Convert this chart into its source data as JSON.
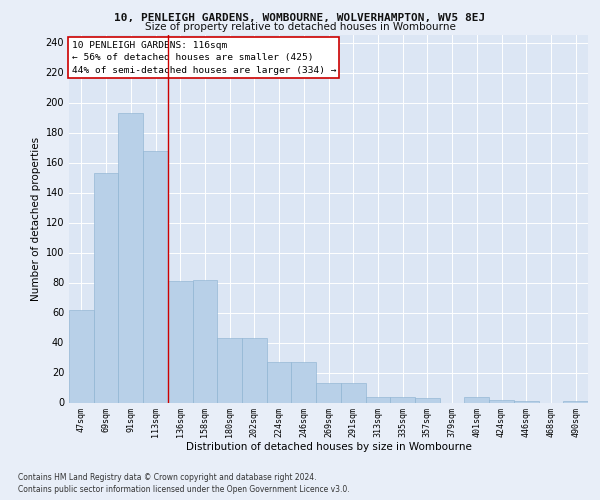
{
  "title1": "10, PENLEIGH GARDENS, WOMBOURNE, WOLVERHAMPTON, WV5 8EJ",
  "title2": "Size of property relative to detached houses in Wombourne",
  "xlabel": "Distribution of detached houses by size in Wombourne",
  "ylabel": "Number of detached properties",
  "footer1": "Contains HM Land Registry data © Crown copyright and database right 2024.",
  "footer2": "Contains public sector information licensed under the Open Government Licence v3.0.",
  "annotation_line1": "10 PENLEIGH GARDENS: 116sqm",
  "annotation_line2": "← 56% of detached houses are smaller (425)",
  "annotation_line3": "44% of semi-detached houses are larger (334) →",
  "bar_labels": [
    "47sqm",
    "69sqm",
    "91sqm",
    "113sqm",
    "136sqm",
    "158sqm",
    "180sqm",
    "202sqm",
    "224sqm",
    "246sqm",
    "269sqm",
    "291sqm",
    "313sqm",
    "335sqm",
    "357sqm",
    "379sqm",
    "401sqm",
    "424sqm",
    "446sqm",
    "468sqm",
    "490sqm"
  ],
  "bar_values": [
    62,
    153,
    193,
    168,
    81,
    82,
    43,
    43,
    27,
    27,
    13,
    13,
    4,
    4,
    3,
    0,
    4,
    2,
    1,
    0,
    1
  ],
  "bar_color": "#b8d0e8",
  "bar_edge_color": "#8ab0d0",
  "vline_x": 3.5,
  "vline_color": "#cc0000",
  "bg_color": "#e8eef8",
  "plot_bg_color": "#dce6f4",
  "grid_color": "#ffffff",
  "annotation_box_facecolor": "#ffffff",
  "annotation_box_edge": "#cc0000",
  "ylim": [
    0,
    245
  ],
  "yticks": [
    0,
    20,
    40,
    60,
    80,
    100,
    120,
    140,
    160,
    180,
    200,
    220,
    240
  ],
  "title1_fontsize": 8.0,
  "title2_fontsize": 7.5,
  "xlabel_fontsize": 7.5,
  "ylabel_fontsize": 7.5,
  "xtick_fontsize": 6.0,
  "ytick_fontsize": 7.0,
  "footer_fontsize": 5.5,
  "annotation_fontsize": 6.8
}
